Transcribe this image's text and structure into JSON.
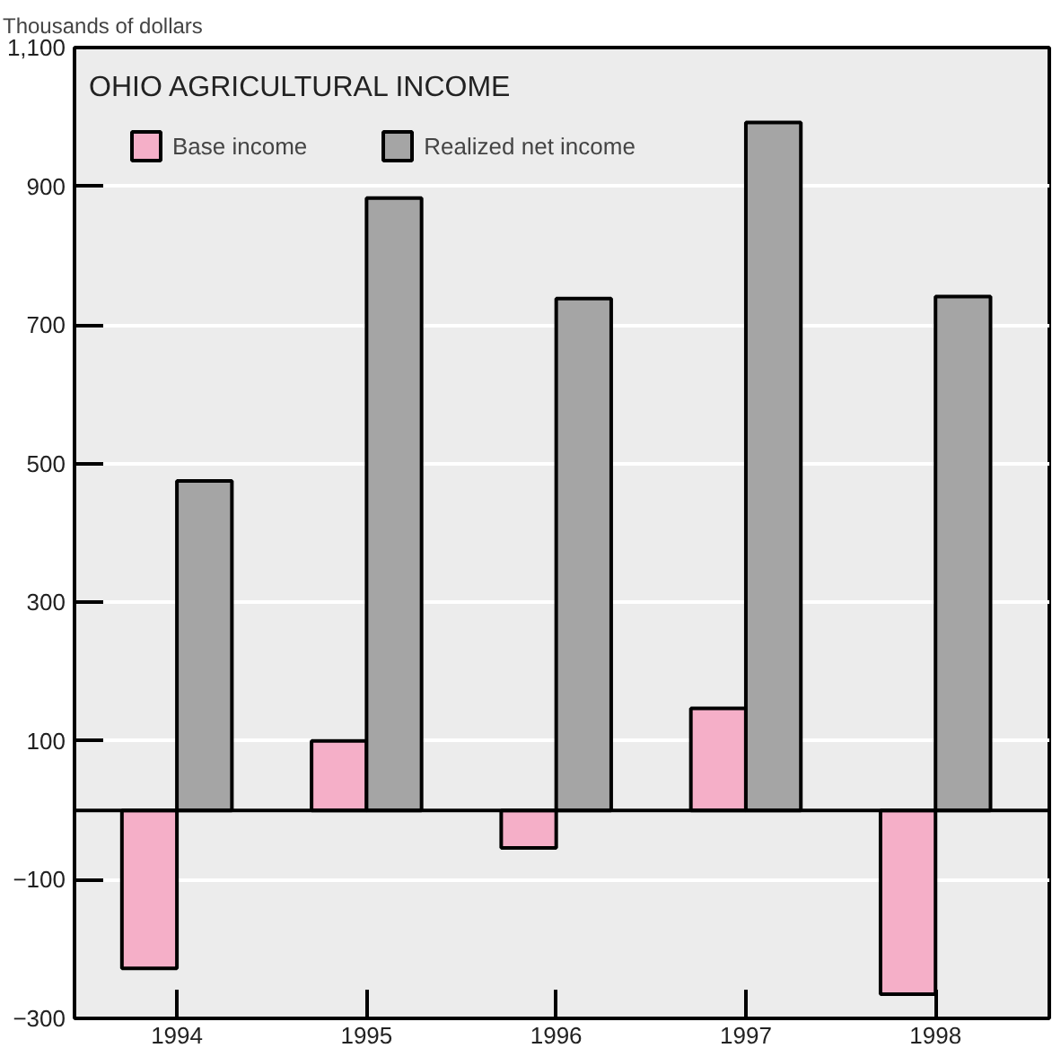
{
  "chart_data": {
    "type": "bar",
    "title": "OHIO AGRICULTURAL INCOME",
    "ylabel": "Thousands of dollars",
    "categories": [
      "1994",
      "1995",
      "1996",
      "1997",
      "1998"
    ],
    "series": [
      {
        "name": "Base income",
        "color": "#f5afc8",
        "values": [
          -228,
          100,
          -54,
          147,
          -265
        ]
      },
      {
        "name": "Realized net income",
        "color": "#a5a5a5",
        "values": [
          475,
          883,
          738,
          992,
          741
        ]
      }
    ],
    "ylim": [
      -300,
      1100
    ],
    "yticks": [
      {
        "value": -300,
        "label": "−300"
      },
      {
        "value": -100,
        "label": "−100"
      },
      100,
      300,
      500,
      700,
      900,
      {
        "value": 1100,
        "label": "1,100"
      }
    ],
    "grid": "y",
    "legend": "top left"
  }
}
